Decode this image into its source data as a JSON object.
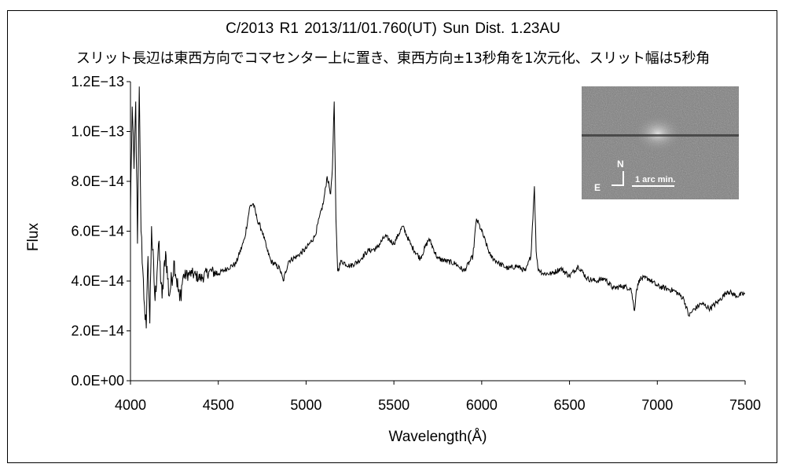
{
  "title_line1": "C/2013 R1     2013/11/01.760(UT)     Sun Dist. 1.23AU",
  "title_line2": "スリット長辺は東西方向でコマセンター上に置き、東西方向±13秒角を1次元化、スリット幅は5秒角",
  "inset": {
    "north_label": "N",
    "east_label": "E",
    "scale_label": "1 arc min."
  },
  "chart_data": {
    "type": "line",
    "xlabel": "Wavelength(Å)",
    "ylabel": "Flux",
    "xlim": [
      4000,
      7500
    ],
    "ylim": [
      0,
      1.2e-13
    ],
    "x_ticks": [
      4000,
      4500,
      5000,
      5500,
      6000,
      6500,
      7000,
      7500
    ],
    "x_tick_labels": [
      "4000",
      "4500",
      "5000",
      "5500",
      "6000",
      "6500",
      "7000",
      "7500"
    ],
    "y_ticks": [
      0,
      2e-14,
      4e-14,
      6e-14,
      8e-14,
      1e-13,
      1.2e-13
    ],
    "y_tick_labels": [
      "0.0E+00",
      "2.0E−14",
      "4.0E−14",
      "6.0E−14",
      "8.0E−14",
      "1.0E−13",
      "1.2E−13"
    ],
    "grid": false,
    "series": [
      {
        "x": [
          4000,
          4010,
          4020,
          4030,
          4040,
          4050,
          4060,
          4070,
          4080,
          4090,
          4100,
          4110,
          4120,
          4140,
          4160,
          4180,
          4200,
          4220,
          4250,
          4280,
          4300,
          4350,
          4400,
          4450,
          4500,
          4550,
          4600,
          4650,
          4680,
          4700,
          4720,
          4750,
          4780,
          4800,
          4850,
          4870,
          4900,
          4950,
          5000,
          5050,
          5100,
          5120,
          5140,
          5150,
          5160,
          5170,
          5180,
          5200,
          5250,
          5300,
          5350,
          5400,
          5450,
          5500,
          5550,
          5600,
          5650,
          5700,
          5750,
          5800,
          5850,
          5900,
          5950,
          5970,
          6000,
          6050,
          6100,
          6150,
          6200,
          6250,
          6280,
          6300,
          6310,
          6320,
          6350,
          6400,
          6450,
          6500,
          6550,
          6600,
          6650,
          6700,
          6750,
          6800,
          6850,
          6870,
          6880,
          6900,
          6950,
          7000,
          7050,
          7100,
          7150,
          7180,
          7200,
          7250,
          7300,
          7350,
          7400,
          7450,
          7500
        ],
        "y": [
          6.8e-14,
          1.1e-13,
          8.5e-14,
          1.12e-13,
          5.5e-14,
          1.18e-13,
          6e-14,
          4.5e-14,
          3e-14,
          2.1e-14,
          5e-14,
          2.3e-14,
          6.2e-14,
          3.2e-14,
          5.5e-14,
          3.3e-14,
          5.2e-14,
          3.4e-14,
          4.8e-14,
          3.2e-14,
          4.2e-14,
          4.3e-14,
          4.1e-14,
          4.4e-14,
          4.3e-14,
          4.5e-14,
          4.7e-14,
          5.7e-14,
          7e-14,
          7.1e-14,
          6.5e-14,
          6e-14,
          5.2e-14,
          4.8e-14,
          4.5e-14,
          4e-14,
          4.8e-14,
          5e-14,
          5.3e-14,
          5.8e-14,
          7.2e-14,
          8.2e-14,
          7.5e-14,
          8.5e-14,
          1.12e-13,
          6.5e-14,
          4.4e-14,
          4.8e-14,
          4.6e-14,
          4.8e-14,
          5.2e-14,
          5.3e-14,
          5.8e-14,
          5.5e-14,
          6.2e-14,
          5.4e-14,
          4.9e-14,
          5.7e-14,
          4.9e-14,
          4.8e-14,
          4.7e-14,
          4.4e-14,
          5e-14,
          6.5e-14,
          6e-14,
          5e-14,
          4.7e-14,
          4.5e-14,
          4.6e-14,
          4.4e-14,
          5e-14,
          7.8e-14,
          5.2e-14,
          4.5e-14,
          4.3e-14,
          4.3e-14,
          4.5e-14,
          4.2e-14,
          4.6e-14,
          4.1e-14,
          4e-14,
          4.1e-14,
          3.7e-14,
          3.8e-14,
          3.7e-14,
          2.8e-14,
          3.6e-14,
          4.1e-14,
          4.1e-14,
          3.8e-14,
          3.7e-14,
          3.6e-14,
          3.3e-14,
          2.6e-14,
          2.8e-14,
          3.1e-14,
          2.9e-14,
          3.2e-14,
          3.6e-14,
          3.4e-14,
          3.5e-14
        ]
      }
    ]
  }
}
